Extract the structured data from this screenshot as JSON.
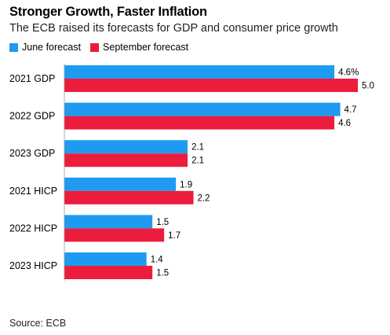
{
  "title": "Stronger Growth, Faster Inflation",
  "subtitle": "The ECB raised its forecasts for GDP and consumer price growth",
  "source": "Source: ECB",
  "colors": {
    "june": "#1e9bf0",
    "september": "#ec1c3c"
  },
  "chart_data": {
    "type": "bar",
    "orientation": "horizontal",
    "categories": [
      "2021 GDP",
      "2022 GDP",
      "2023 GDP",
      "2021 HICP",
      "2022 HICP",
      "2023 HICP"
    ],
    "series": [
      {
        "name": "June forecast",
        "values": [
          4.6,
          4.7,
          2.1,
          1.9,
          1.5,
          1.4
        ],
        "labels": [
          "4.6%",
          "4.7",
          "2.1",
          "1.9",
          "1.5",
          "1.4"
        ]
      },
      {
        "name": "September forecast",
        "values": [
          5.0,
          4.6,
          2.1,
          2.2,
          1.7,
          1.5
        ],
        "labels": [
          "5.0",
          "4.6",
          "2.1",
          "2.2",
          "1.7",
          "1.5"
        ]
      }
    ],
    "xlim": [
      0,
      5.0
    ],
    "legend": "top-left",
    "grid": false
  }
}
